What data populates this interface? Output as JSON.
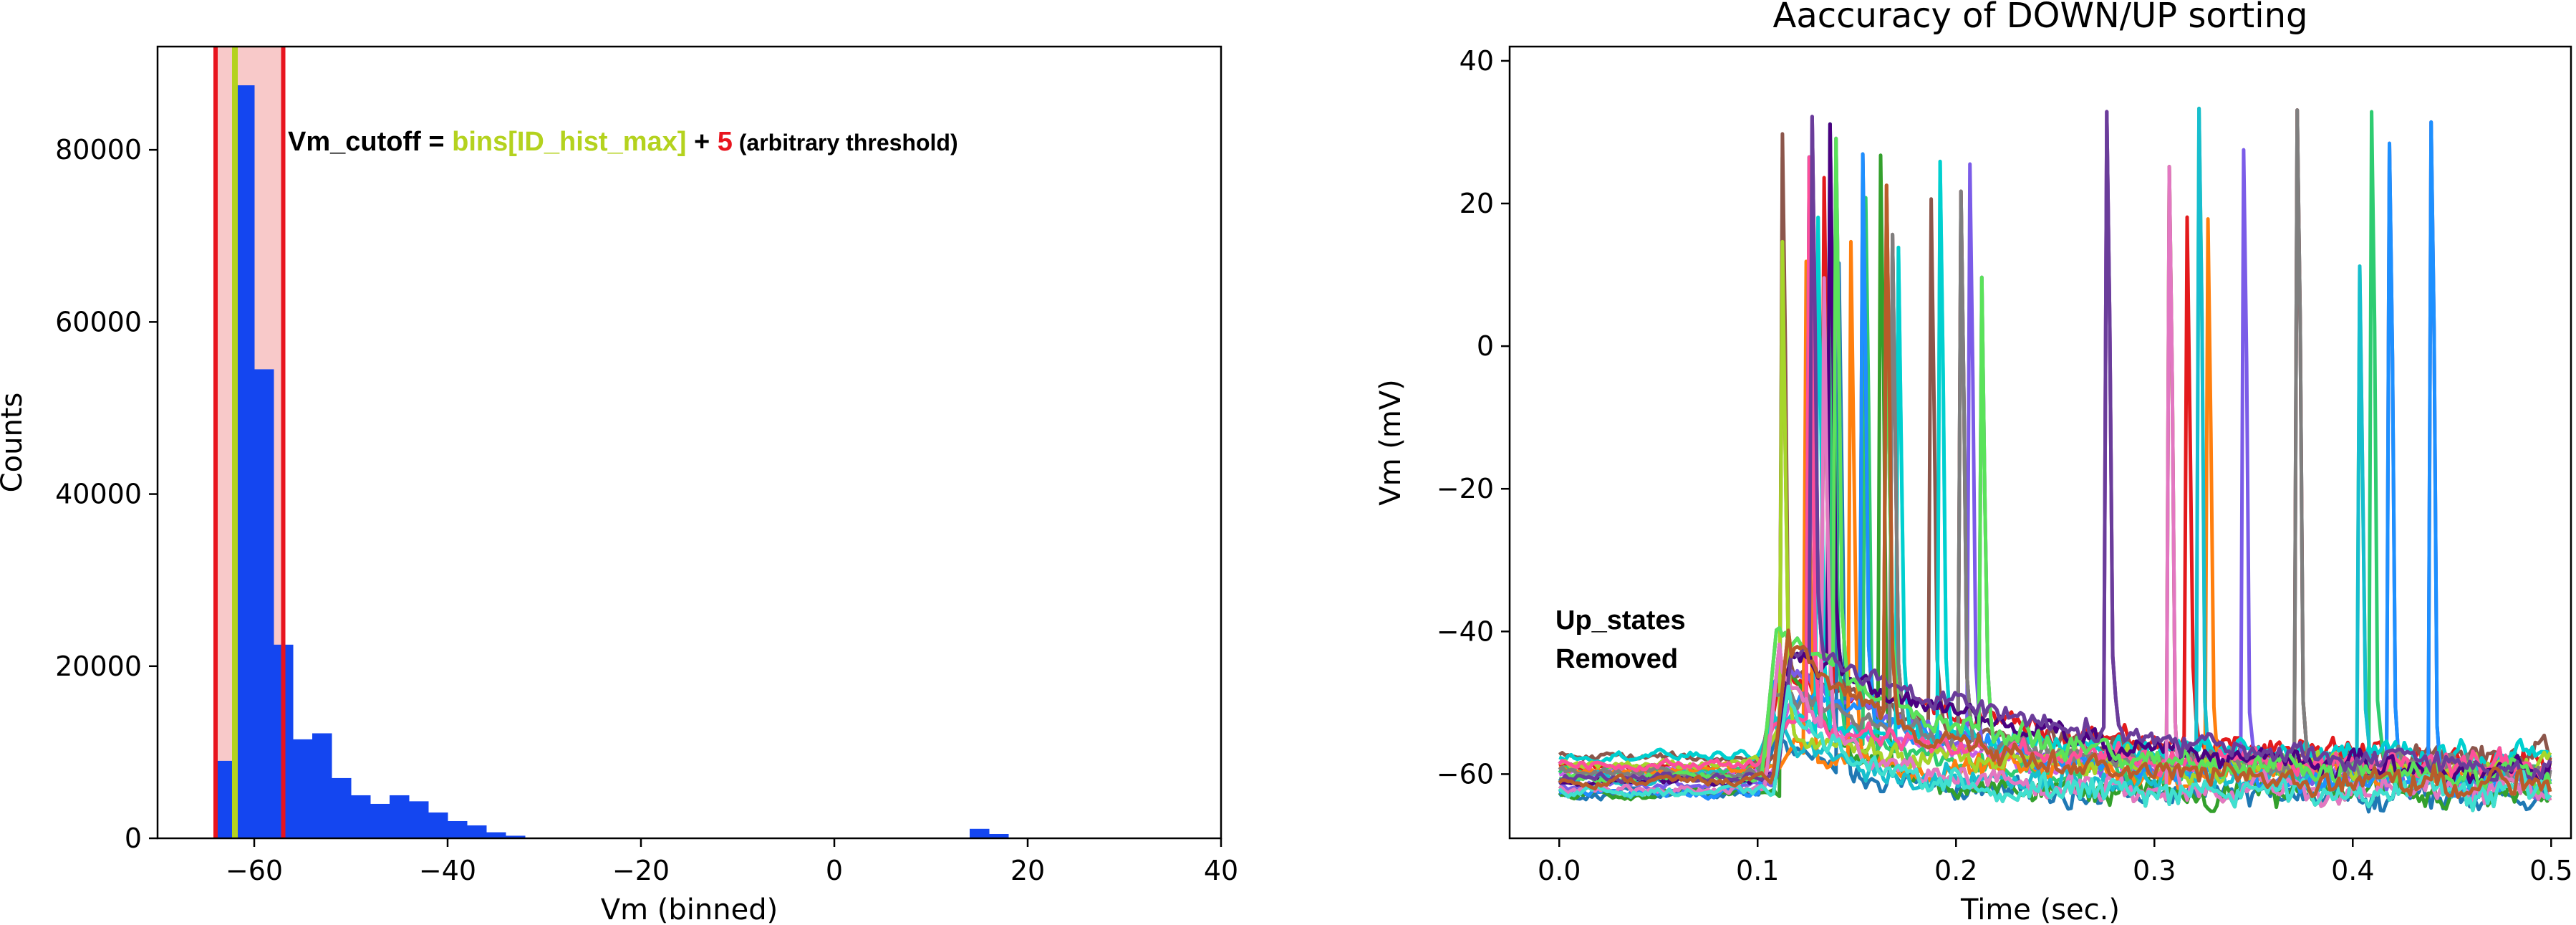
{
  "chart_data": [
    {
      "type": "bar",
      "panel": "left",
      "title": "",
      "xlabel": "Vm (binned)",
      "ylabel": "Counts",
      "xlim": [
        -70,
        40
      ],
      "ylim": [
        0,
        92000
      ],
      "xticks": [
        "−60",
        "−40",
        "−20",
        "0",
        "20",
        "40"
      ],
      "yticks": [
        "0",
        "20000",
        "40000",
        "60000",
        "80000"
      ],
      "bar_color": "#1446f0",
      "bin_width": 2,
      "bins": [
        {
          "x": -64,
          "value": 9000
        },
        {
          "x": -62,
          "value": 87500
        },
        {
          "x": -60,
          "value": 54500
        },
        {
          "x": -58,
          "value": 22500
        },
        {
          "x": -56,
          "value": 11500
        },
        {
          "x": -54,
          "value": 12200
        },
        {
          "x": -52,
          "value": 7000
        },
        {
          "x": -50,
          "value": 5000
        },
        {
          "x": -48,
          "value": 4000
        },
        {
          "x": -46,
          "value": 5000
        },
        {
          "x": -44,
          "value": 4300
        },
        {
          "x": -42,
          "value": 3000
        },
        {
          "x": -40,
          "value": 2000
        },
        {
          "x": -38,
          "value": 1500
        },
        {
          "x": -36,
          "value": 700
        },
        {
          "x": -34,
          "value": 300
        },
        {
          "x": 14,
          "value": 1100
        },
        {
          "x": 16,
          "value": 500
        }
      ],
      "shaded_range": [
        -64,
        -57
      ],
      "shade_color": "#f8c9c9",
      "red_lines": [
        -64,
        -57
      ],
      "red_color": "#e8141e",
      "green_line": -62,
      "green_color": "#b4d21e",
      "annotation": {
        "part1": "Vm_cutoff = ",
        "part2": "bins[ID_hist_max]",
        "part3": " + ",
        "part4": "5",
        "part5": " (arbitrary threshold)"
      }
    },
    {
      "type": "line",
      "panel": "right",
      "title": "Aaccuracy of DOWN/UP sorting",
      "xlabel": "Time (sec.)",
      "ylabel": "Vm (mV)",
      "xlim": [
        -0.025,
        0.51
      ],
      "ylim": [
        -69,
        42
      ],
      "xticks": [
        "0.0",
        "0.1",
        "0.2",
        "0.3",
        "0.4",
        "0.5"
      ],
      "yticks": [
        "−60",
        "−40",
        "−20",
        "0",
        "20",
        "40"
      ],
      "annotation_line1": "Up_states",
      "annotation_line2": "Removed",
      "baseline_mV": -60,
      "onset_sec": 0.1,
      "spike_peak_mV": 34,
      "trace_count": 40,
      "colors": [
        "#e31a1c",
        "#1f78b4",
        "#33a02c",
        "#8c564b",
        "#c85ee8",
        "#7b5ce8",
        "#2ecc71",
        "#ff7f0e",
        "#17becf",
        "#1e90ff",
        "#00d0d0",
        "#a6d62a",
        "#7f7f7f",
        "#ff4f9a",
        "#4b0082",
        "#e377c2",
        "#5ae35a",
        "#6a3d9a",
        "#40e0d0",
        "#b85c2a"
      ]
    }
  ]
}
